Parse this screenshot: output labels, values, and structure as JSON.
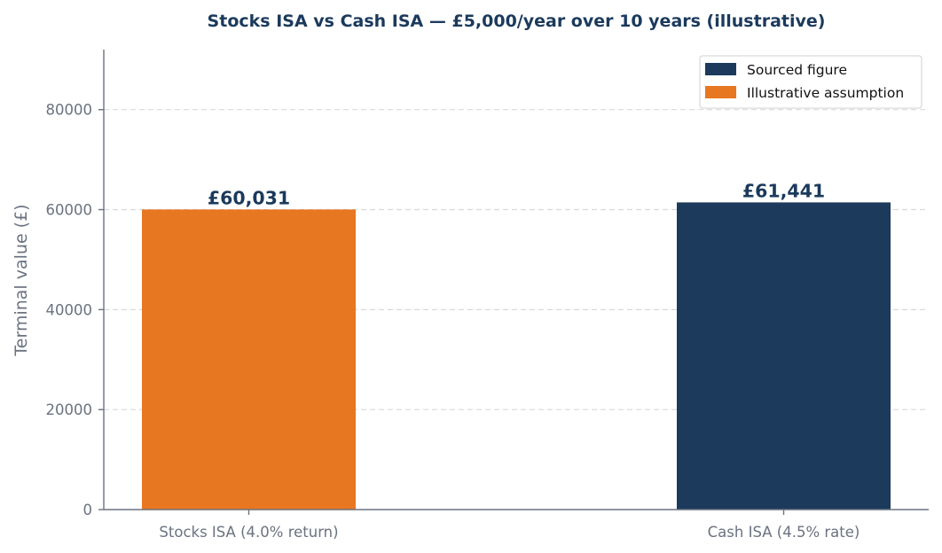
{
  "chart_data": {
    "type": "bar",
    "title": "Stocks ISA vs Cash ISA — £5,000/year over 10 years (illustrative)",
    "xlabel": "",
    "ylabel": "Terminal value (£)",
    "ylim": [
      0,
      92000
    ],
    "yticks": [
      0,
      20000,
      40000,
      60000,
      80000
    ],
    "grid": "y-dashed",
    "legend_position": "top-right",
    "categories": [
      "Stocks ISA (4.0% return)",
      "Cash ISA (4.5% rate)"
    ],
    "values": [
      60031,
      61441
    ],
    "value_labels": [
      "£60,031",
      "£61,441"
    ],
    "bar_colors": [
      "#e87722",
      "#1b3a5c"
    ],
    "legend": [
      {
        "label": "Sourced figure",
        "color": "#1b3a5c"
      },
      {
        "label": "Illustrative assumption",
        "color": "#e87722"
      }
    ]
  }
}
